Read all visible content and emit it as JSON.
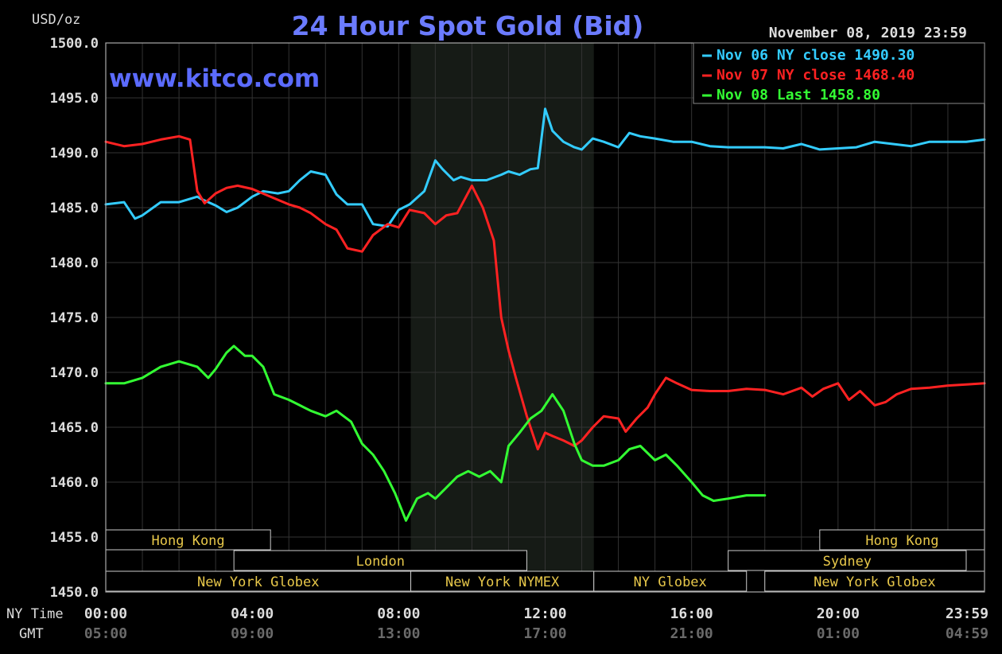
{
  "chart_data": {
    "type": "line",
    "title": "24 Hour Spot Gold (Bid)",
    "watermark": "www.kitco.com",
    "date_label": "November 08, 2019 23:59",
    "ylabel": "USD/oz",
    "ylim": [
      1450,
      1500
    ],
    "yticks": [
      "1450.0",
      "1455.0",
      "1460.0",
      "1465.0",
      "1470.0",
      "1475.0",
      "1480.0",
      "1485.0",
      "1490.0",
      "1495.0",
      "1500.0"
    ],
    "xlim": [
      0,
      24
    ],
    "x_row_label": "NY Time",
    "gmt_row_label": "GMT",
    "xticks": [
      {
        "x": 0,
        "ny": "00:00",
        "gmt": "05:00"
      },
      {
        "x": 4,
        "ny": "04:00",
        "gmt": "09:00"
      },
      {
        "x": 8,
        "ny": "08:00",
        "gmt": "13:00"
      },
      {
        "x": 12,
        "ny": "12:00",
        "gmt": "17:00"
      },
      {
        "x": 16,
        "ny": "16:00",
        "gmt": "21:00"
      },
      {
        "x": 20,
        "ny": "20:00",
        "gmt": "01:00"
      },
      {
        "x": 24,
        "ny": "23:59",
        "gmt": "04:59"
      }
    ],
    "shaded_range": [
      8.33,
      13.33
    ],
    "grid": true,
    "legend_position": "top-right",
    "legend": [
      {
        "text": "Nov 06 NY close 1490.30",
        "color": "#33ccff"
      },
      {
        "text": "Nov 07 NY close 1468.40",
        "color": "#ff2222"
      },
      {
        "text": "Nov 08 Last 1458.80",
        "color": "#33ff33"
      }
    ],
    "series": [
      {
        "color": "#33ccff",
        "x": [
          0,
          0.5,
          0.8,
          1.0,
          1.5,
          2.0,
          2.5,
          2.6,
          3.0,
          3.3,
          3.6,
          4.0,
          4.3,
          4.7,
          5.0,
          5.3,
          5.6,
          6.0,
          6.3,
          6.6,
          7.0,
          7.3,
          7.7,
          8.0,
          8.3,
          8.7,
          9.0,
          9.2,
          9.5,
          9.7,
          10.0,
          10.4,
          10.8,
          11.0,
          11.3,
          11.6,
          11.8,
          12.0,
          12.2,
          12.5,
          12.8,
          13.0,
          13.3,
          13.6,
          14.0,
          14.3,
          14.6,
          15.0,
          15.5,
          16.0,
          16.5,
          17.0,
          17.5,
          18.0,
          18.5,
          19.0,
          19.5,
          20.0,
          20.5,
          21.0,
          21.5,
          22.0,
          22.5,
          23.0,
          23.5,
          24.0
        ],
        "y": [
          1485.3,
          1485.5,
          1484.0,
          1484.3,
          1485.5,
          1485.5,
          1486.0,
          1485.8,
          1485.2,
          1484.6,
          1485.0,
          1486.0,
          1486.5,
          1486.3,
          1486.5,
          1487.5,
          1488.3,
          1488.0,
          1486.2,
          1485.3,
          1485.3,
          1483.5,
          1483.3,
          1484.8,
          1485.3,
          1486.5,
          1489.3,
          1488.5,
          1487.5,
          1487.8,
          1487.5,
          1487.5,
          1488.0,
          1488.3,
          1488.0,
          1488.5,
          1488.6,
          1494.0,
          1492.0,
          1491.0,
          1490.5,
          1490.3,
          1491.3,
          1491.0,
          1490.5,
          1491.8,
          1491.5,
          1491.3,
          1491.0,
          1491.0,
          1490.6,
          1490.5,
          1490.5,
          1490.5,
          1490.4,
          1490.8,
          1490.3,
          1490.4,
          1490.5,
          1491.0,
          1490.8,
          1490.6,
          1491.0,
          1491.0,
          1491.0,
          1491.2
        ]
      },
      {
        "color": "#ff2222",
        "x": [
          0,
          0.5,
          1.0,
          1.5,
          2.0,
          2.3,
          2.5,
          2.7,
          3.0,
          3.3,
          3.6,
          4.0,
          4.5,
          5.0,
          5.3,
          5.6,
          6.0,
          6.3,
          6.6,
          7.0,
          7.3,
          7.7,
          8.0,
          8.3,
          8.7,
          9.0,
          9.3,
          9.6,
          10.0,
          10.3,
          10.6,
          10.8,
          11.0,
          11.2,
          11.5,
          11.8,
          12.0,
          12.2,
          12.5,
          12.8,
          13.0,
          13.3,
          13.6,
          14.0,
          14.2,
          14.5,
          14.8,
          15.0,
          15.3,
          15.6,
          16.0,
          16.5,
          17.0,
          17.5,
          18.0,
          18.5,
          19.0,
          19.3,
          19.6,
          20.0,
          20.3,
          20.6,
          21.0,
          21.3,
          21.6,
          22.0,
          22.5,
          23.0,
          23.5,
          24.0
        ],
        "y": [
          1491.0,
          1490.6,
          1490.8,
          1491.2,
          1491.5,
          1491.2,
          1486.5,
          1485.4,
          1486.3,
          1486.8,
          1487.0,
          1486.7,
          1486.0,
          1485.3,
          1485.0,
          1484.5,
          1483.5,
          1483.0,
          1481.3,
          1481.0,
          1482.5,
          1483.5,
          1483.2,
          1484.8,
          1484.5,
          1483.5,
          1484.3,
          1484.5,
          1487.0,
          1485.0,
          1482.0,
          1475.0,
          1472.0,
          1469.5,
          1466.0,
          1463.0,
          1464.5,
          1464.2,
          1463.8,
          1463.3,
          1463.8,
          1465.0,
          1466.0,
          1465.8,
          1464.6,
          1465.8,
          1466.8,
          1468.0,
          1469.5,
          1469.0,
          1468.4,
          1468.3,
          1468.3,
          1468.5,
          1468.4,
          1468.0,
          1468.6,
          1467.8,
          1468.5,
          1469.0,
          1467.5,
          1468.3,
          1467.0,
          1467.3,
          1468.0,
          1468.5,
          1468.6,
          1468.8,
          1468.9,
          1469.0
        ]
      },
      {
        "color": "#33ff33",
        "x": [
          0,
          0.5,
          1.0,
          1.5,
          2.0,
          2.5,
          2.8,
          3.0,
          3.3,
          3.5,
          3.8,
          4.0,
          4.3,
          4.6,
          5.0,
          5.3,
          5.6,
          6.0,
          6.3,
          6.7,
          7.0,
          7.3,
          7.6,
          7.9,
          8.2,
          8.5,
          8.8,
          9.0,
          9.3,
          9.6,
          9.9,
          10.2,
          10.5,
          10.8,
          11.0,
          11.3,
          11.6,
          11.9,
          12.2,
          12.5,
          12.8,
          13.0,
          13.3,
          13.6,
          14.0,
          14.3,
          14.6,
          15.0,
          15.3,
          15.6,
          16.0,
          16.3,
          16.6,
          17.0,
          17.5,
          18.0
        ],
        "y": [
          1469.0,
          1469.0,
          1469.5,
          1470.5,
          1471.0,
          1470.5,
          1469.5,
          1470.3,
          1471.8,
          1472.4,
          1471.5,
          1471.5,
          1470.5,
          1468.0,
          1467.5,
          1467.0,
          1466.5,
          1466.0,
          1466.5,
          1465.5,
          1463.5,
          1462.5,
          1461.0,
          1459.0,
          1456.5,
          1458.5,
          1459.0,
          1458.5,
          1459.5,
          1460.5,
          1461.0,
          1460.5,
          1461.0,
          1460.0,
          1463.3,
          1464.5,
          1465.8,
          1466.5,
          1468.0,
          1466.5,
          1463.5,
          1462.0,
          1461.5,
          1461.5,
          1462.0,
          1463.0,
          1463.3,
          1462.0,
          1462.5,
          1461.5,
          1460.0,
          1458.8,
          1458.3,
          1458.5,
          1458.8,
          1458.8
        ]
      }
    ],
    "sessions": [
      {
        "label": "Hong Kong",
        "row": 0,
        "x0": 0,
        "x1": 4.5
      },
      {
        "label": "Hong Kong",
        "row": 0,
        "x0": 19.5,
        "x1": 24
      },
      {
        "label": "London",
        "row": 1,
        "x0": 3.5,
        "x1": 11.5
      },
      {
        "label": "Sydney",
        "row": 1,
        "x0": 17.0,
        "x1": 23.5
      },
      {
        "label": "New York Globex",
        "row": 2,
        "x0": 0,
        "x1": 8.33
      },
      {
        "label": "New York NYMEX",
        "row": 2,
        "x0": 8.33,
        "x1": 13.33
      },
      {
        "label": "NY Globex",
        "row": 2,
        "x0": 13.33,
        "x1": 17.5
      },
      {
        "label": "New York Globex",
        "row": 2,
        "x0": 18.0,
        "x1": 24
      }
    ]
  }
}
